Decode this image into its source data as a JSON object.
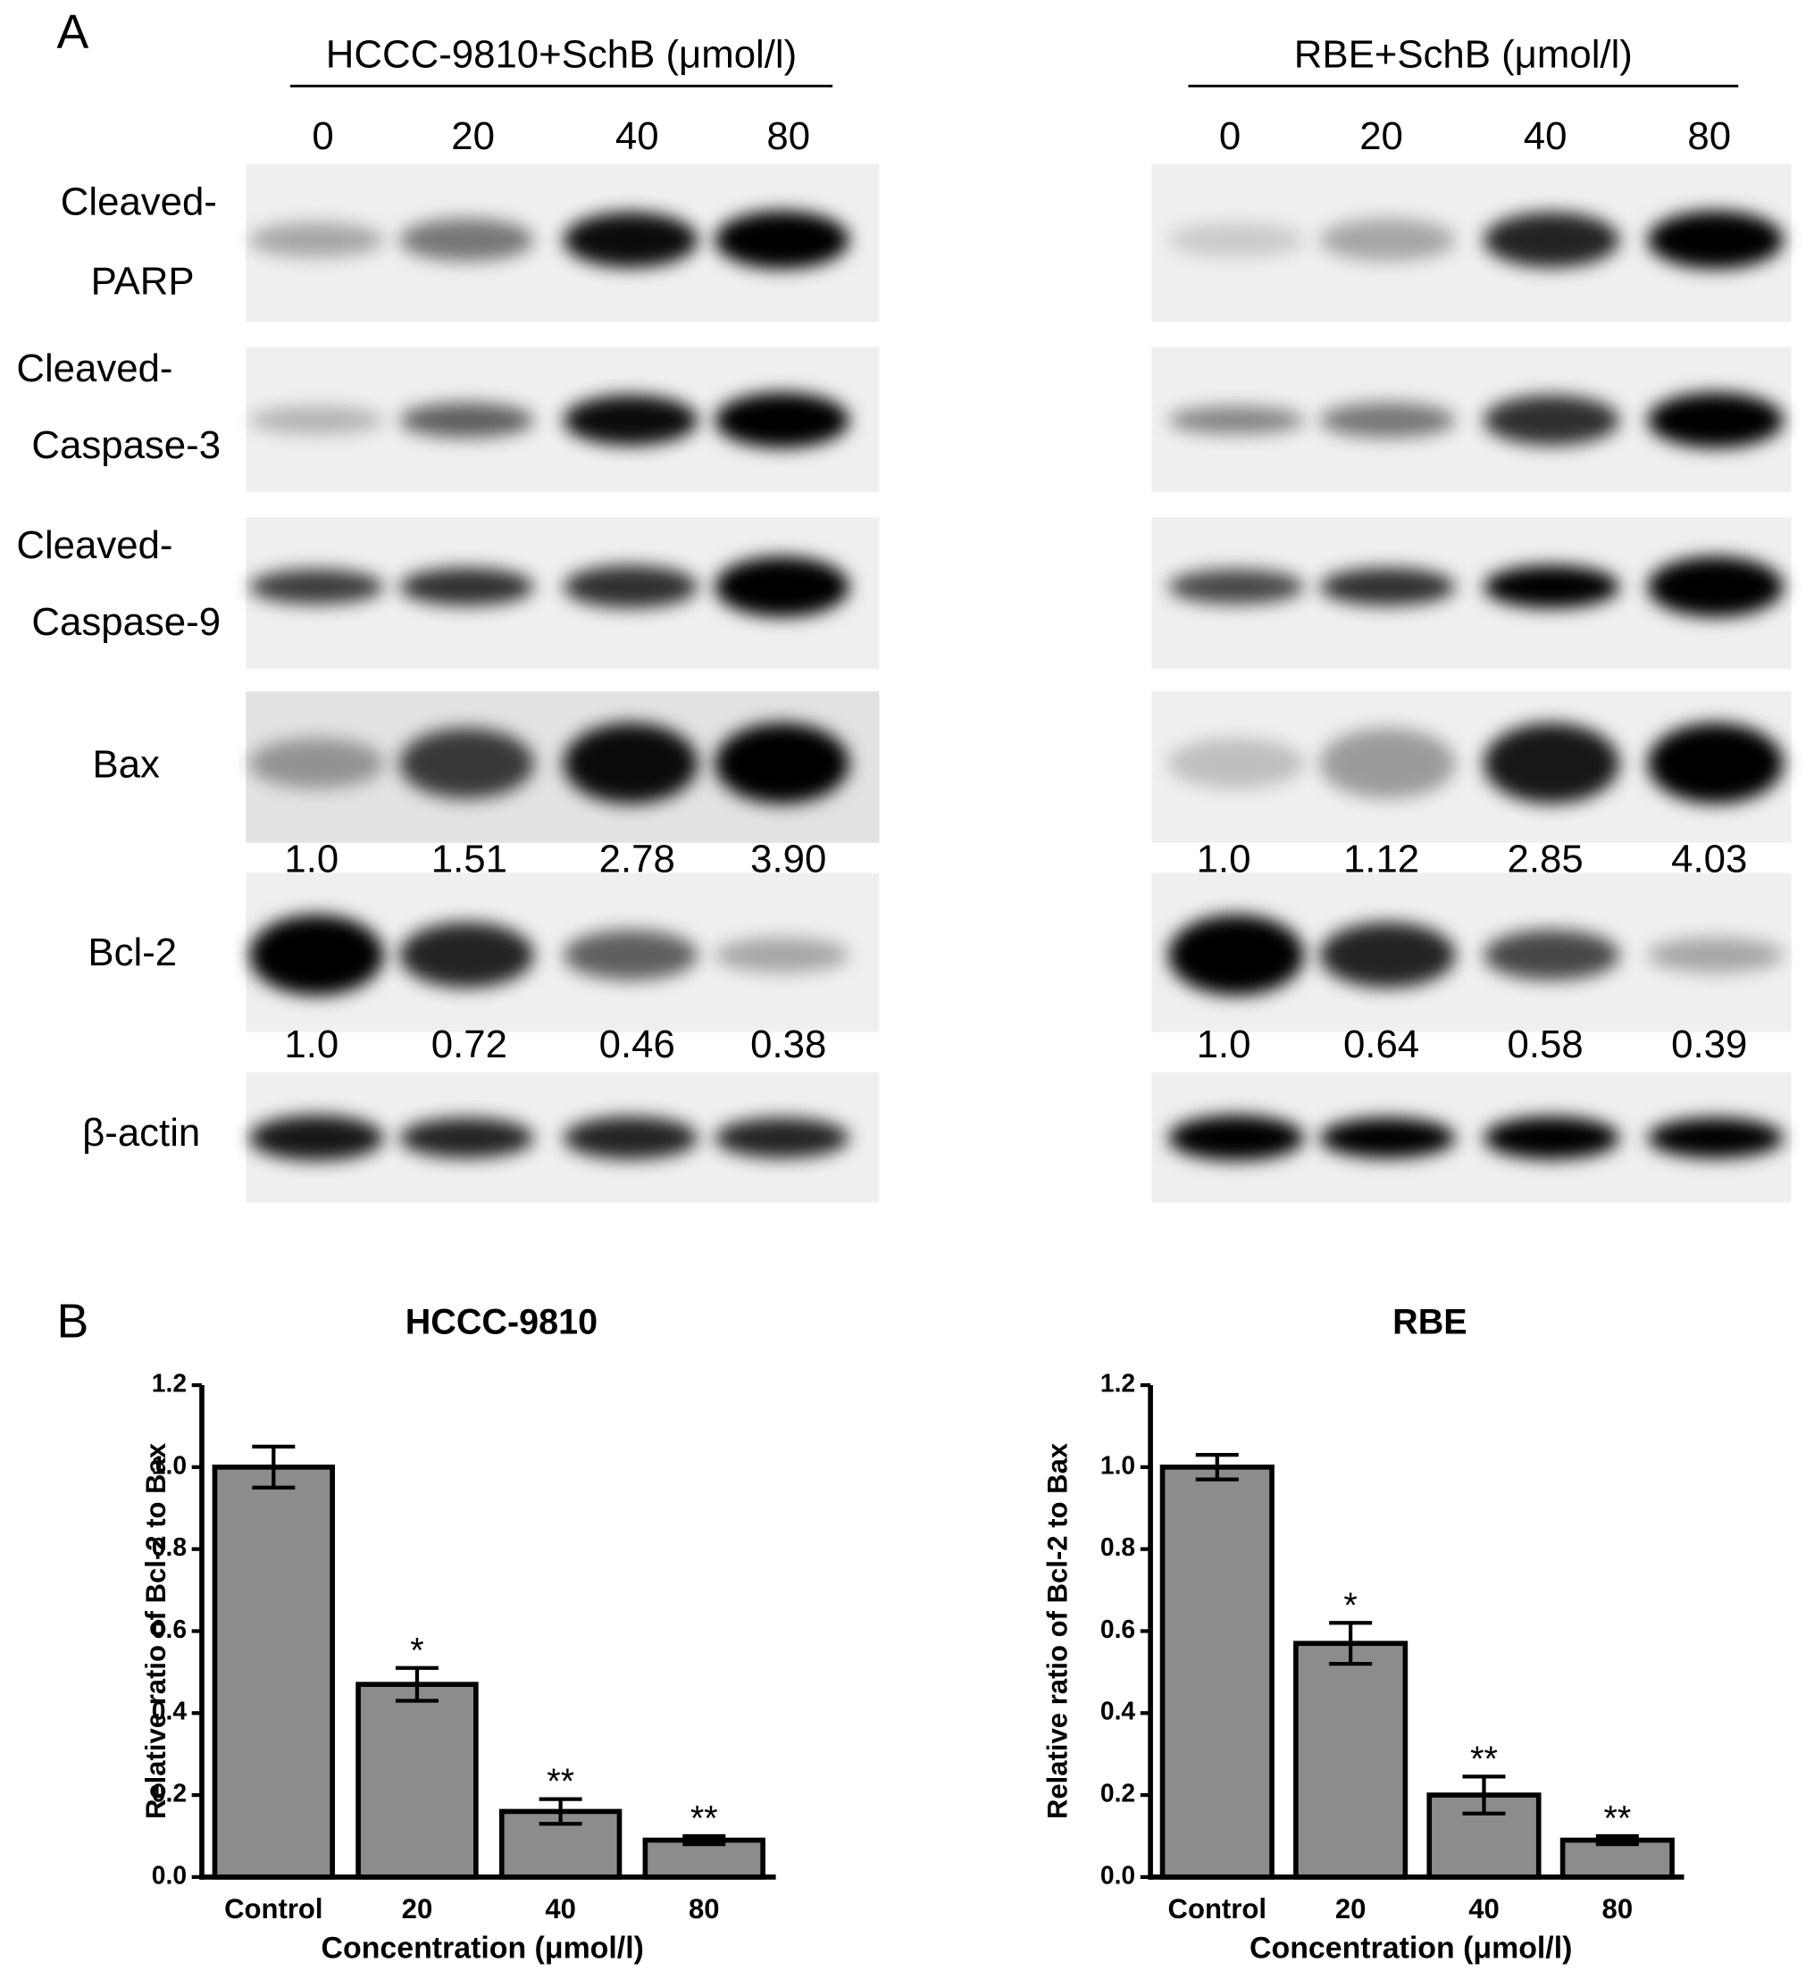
{
  "panel_a": {
    "label": "A",
    "rows": [
      [
        "Cleaved-",
        "PARP"
      ],
      [
        "Cleaved-",
        "Caspase-3"
      ],
      [
        "Cleaved-",
        "Caspase-9"
      ],
      [
        "Bax"
      ],
      [
        "Bcl-2"
      ],
      [
        "β-actin"
      ]
    ],
    "groups": [
      {
        "title": "HCCC-9810+SchB (μmol/l)",
        "lanes": [
          "0",
          "20",
          "40",
          "80"
        ],
        "bax_ratios": [
          "1.0",
          "1.51",
          "2.78",
          "3.90"
        ],
        "bcl2_ratios": [
          "1.0",
          "0.72",
          "0.46",
          "0.38"
        ]
      },
      {
        "title": "RBE+SchB (μmol/l)",
        "lanes": [
          "0",
          "20",
          "40",
          "80"
        ],
        "bax_ratios": [
          "1.0",
          "1.12",
          "2.85",
          "4.03"
        ],
        "bcl2_ratios": [
          "1.0",
          "0.64",
          "0.58",
          "0.39"
        ]
      }
    ]
  },
  "panel_b": {
    "label": "B"
  },
  "chart_data": [
    {
      "type": "bar",
      "title": "HCCC-9810",
      "categories": [
        "Control",
        "20",
        "40",
        "80"
      ],
      "values": [
        1.0,
        0.47,
        0.16,
        0.09
      ],
      "errors": [
        0.05,
        0.04,
        0.03,
        0.01
      ],
      "annotations": [
        null,
        "*",
        "**",
        "**"
      ],
      "color": "#8c8c8c",
      "x_label": "Concentration (μmol/l)",
      "y_label": "Relative ratio of Bcl-2 to Bax",
      "ylim": [
        0,
        1.2
      ],
      "yticks": [
        {
          "value": 0,
          "label": "0.0"
        },
        0.2,
        0.4,
        0.6,
        0.8,
        {
          "value": 1,
          "label": "1.0"
        },
        1.2
      ]
    },
    {
      "type": "bar",
      "title": "RBE",
      "categories": [
        "Control",
        "20",
        "40",
        "80"
      ],
      "values": [
        1.0,
        0.57,
        0.2,
        0.09
      ],
      "errors": [
        0.03,
        0.05,
        0.045,
        0.01
      ],
      "annotations": [
        null,
        "*",
        "**",
        "**"
      ],
      "color": "#8c8c8c",
      "x_label": "Concentration (μmol/l)",
      "y_label": "Relative ratio of Bcl-2 to Bax",
      "ylim": [
        0,
        1.2
      ],
      "yticks": [
        {
          "value": 0,
          "label": "0.0"
        },
        0.2,
        0.4,
        0.6,
        0.8,
        {
          "value": 1,
          "label": "1.0"
        },
        1.2
      ]
    }
  ]
}
